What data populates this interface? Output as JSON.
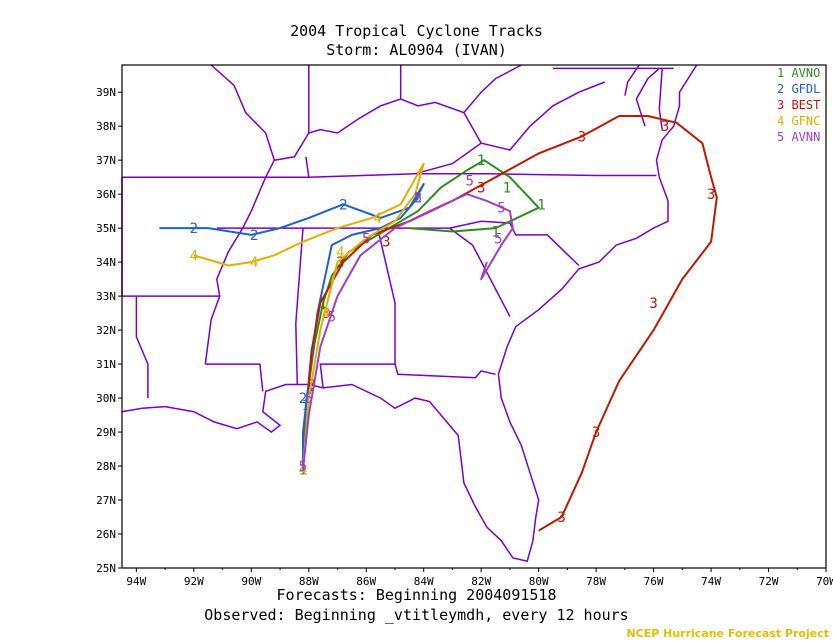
{
  "title": "2004 Tropical Cyclone Tracks",
  "subtitle": "Storm: AL0904 (IVAN)",
  "forecast_label": "Forecasts: Beginning 2004091518",
  "observed_label": "Observed: Beginning _vtitleymdh, every 12 hours",
  "credit": "NCEP Hurricane Forecast Project",
  "colors": {
    "border": "#7a00cc",
    "avno": "#2e8b1e",
    "gfdl": "#1f5fd0",
    "best": "#c01800",
    "gfnc": "#e0b000",
    "avnn": "#a040c0",
    "credit": "#e0c000"
  },
  "axes": {
    "lon_labels": [
      "94W",
      "92W",
      "90W",
      "88W",
      "86W",
      "84W",
      "82W",
      "80W",
      "78W",
      "76W",
      "74W",
      "72W",
      "70W"
    ],
    "lat_labels": [
      "39N",
      "38N",
      "37N",
      "36N",
      "35N",
      "34N",
      "33N",
      "32N",
      "31N",
      "30N",
      "29N",
      "28N",
      "27N",
      "26N",
      "25N"
    ],
    "lon_range": [
      -94.5,
      -70
    ],
    "lat_range": [
      25,
      39.8
    ]
  },
  "legend": [
    {
      "num": "1",
      "name": "AVNO",
      "color_key": "avno"
    },
    {
      "num": "2",
      "name": "GFDL",
      "color_key": "gfdl"
    },
    {
      "num": "3",
      "name": "BEST",
      "color_key": "best"
    },
    {
      "num": "4",
      "name": "GFNC",
      "color_key": "gfnc"
    },
    {
      "num": "5",
      "name": "AVNN",
      "color_key": "avnn"
    }
  ],
  "tracks": [
    {
      "num": "1",
      "color_key": "avno",
      "points": [
        [
          -88.2,
          27.9
        ],
        [
          -88.1,
          29.8
        ],
        [
          -87.8,
          31.6
        ],
        [
          -87.5,
          32.8
        ],
        [
          -87.2,
          33.6
        ],
        [
          -86.6,
          34.3
        ],
        [
          -85.8,
          34.7
        ],
        [
          -84.8,
          35.2
        ],
        [
          -84.2,
          35.5
        ],
        [
          -83.4,
          36.2
        ],
        [
          -82.5,
          36.7
        ],
        [
          -81.9,
          37.0
        ],
        [
          -81.0,
          36.5
        ],
        [
          -80.0,
          35.6
        ],
        [
          -81.5,
          35.0
        ],
        [
          -83.0,
          34.9
        ],
        [
          -84.5,
          35.0
        ]
      ],
      "labels": [
        [
          -88.2,
          27.9
        ],
        [
          -88.1,
          29.8
        ],
        [
          -87.5,
          32.8
        ],
        [
          -82.0,
          37.0
        ],
        [
          -81.1,
          36.2
        ],
        [
          -79.9,
          35.7
        ],
        [
          -81.5,
          34.9
        ]
      ]
    },
    {
      "num": "2",
      "color_key": "gfdl",
      "points": [
        [
          -88.2,
          27.9
        ],
        [
          -88.2,
          29.0
        ],
        [
          -88.0,
          30.5
        ],
        [
          -87.7,
          32.5
        ],
        [
          -87.2,
          34.5
        ],
        [
          -86.5,
          34.8
        ],
        [
          -85.5,
          35.0
        ],
        [
          -84.8,
          35.3
        ],
        [
          -84.3,
          35.8
        ],
        [
          -84.0,
          36.3
        ],
        [
          -84.5,
          35.6
        ],
        [
          -85.5,
          35.3
        ],
        [
          -86.8,
          35.7
        ],
        [
          -88.0,
          35.3
        ],
        [
          -89.0,
          35.0
        ],
        [
          -90.0,
          34.8
        ],
        [
          -91.5,
          35.0
        ],
        [
          -93.2,
          35.0
        ]
      ],
      "labels": [
        [
          -88.2,
          30.0
        ],
        [
          -84.2,
          35.9
        ],
        [
          -86.8,
          35.7
        ],
        [
          -89.9,
          34.8
        ],
        [
          -92.0,
          35.0
        ]
      ]
    },
    {
      "num": "3",
      "color_key": "best",
      "points": [
        [
          -80.0,
          26.1
        ],
        [
          -79.2,
          26.5
        ],
        [
          -78.5,
          27.8
        ],
        [
          -78.0,
          29.0
        ],
        [
          -77.2,
          30.5
        ],
        [
          -76.0,
          32.0
        ],
        [
          -75.0,
          33.5
        ],
        [
          -74.0,
          34.6
        ],
        [
          -73.8,
          35.9
        ],
        [
          -74.0,
          36.5
        ],
        [
          -74.3,
          37.5
        ],
        [
          -75.2,
          38.1
        ],
        [
          -76.2,
          38.3
        ],
        [
          -77.2,
          38.3
        ],
        [
          -78.5,
          37.7
        ],
        [
          -80.0,
          37.2
        ],
        [
          -81.5,
          36.5
        ],
        [
          -83.0,
          35.8
        ],
        [
          -84.5,
          35.2
        ],
        [
          -85.8,
          34.8
        ],
        [
          -86.8,
          34.0
        ],
        [
          -87.6,
          32.8
        ],
        [
          -87.9,
          31.4
        ],
        [
          -88.0,
          30.5
        ],
        [
          -87.9,
          30.2
        ]
      ],
      "labels": [
        [
          -79.2,
          26.5
        ],
        [
          -78.0,
          29.0
        ],
        [
          -76.0,
          32.8
        ],
        [
          -74.0,
          36.0
        ],
        [
          -75.6,
          38.0
        ],
        [
          -78.5,
          37.7
        ],
        [
          -82.0,
          36.2
        ],
        [
          -85.3,
          34.6
        ],
        [
          -86.9,
          34.0
        ],
        [
          -87.4,
          32.5
        ],
        [
          -87.9,
          30.4
        ]
      ]
    },
    {
      "num": "4",
      "color_key": "gfnc",
      "points": [
        [
          -88.2,
          27.9
        ],
        [
          -88.0,
          30.0
        ],
        [
          -87.6,
          32.0
        ],
        [
          -87.3,
          33.0
        ],
        [
          -87.0,
          34.0
        ],
        [
          -86.0,
          34.7
        ],
        [
          -85.0,
          35.2
        ],
        [
          -84.3,
          36.0
        ],
        [
          -84.0,
          36.9
        ],
        [
          -84.8,
          35.7
        ],
        [
          -85.8,
          35.3
        ],
        [
          -87.0,
          35.0
        ],
        [
          -88.2,
          34.6
        ],
        [
          -89.2,
          34.2
        ],
        [
          -90.0,
          34.0
        ],
        [
          -90.8,
          33.9
        ],
        [
          -92.0,
          34.2
        ]
      ],
      "labels": [
        [
          -88.2,
          27.9
        ],
        [
          -87.4,
          32.5
        ],
        [
          -86.9,
          34.3
        ],
        [
          -85.6,
          35.3
        ],
        [
          -89.9,
          34.0
        ],
        [
          -92.0,
          34.2
        ]
      ]
    },
    {
      "num": "5",
      "color_key": "avnn",
      "points": [
        [
          -88.2,
          27.9
        ],
        [
          -88.0,
          29.5
        ],
        [
          -87.6,
          31.5
        ],
        [
          -87.0,
          33.0
        ],
        [
          -86.2,
          34.2
        ],
        [
          -85.0,
          35.0
        ],
        [
          -83.8,
          35.5
        ],
        [
          -82.5,
          36.0
        ],
        [
          -81.8,
          35.8
        ],
        [
          -81.0,
          35.5
        ],
        [
          -80.9,
          35.0
        ],
        [
          -81.3,
          34.5
        ],
        [
          -82.0,
          33.5
        ],
        [
          -81.8,
          34.0
        ]
      ],
      "labels": [
        [
          -88.2,
          28.0
        ],
        [
          -88.0,
          30.0
        ],
        [
          -87.2,
          32.4
        ],
        [
          -86.0,
          34.7
        ],
        [
          -84.2,
          35.9
        ],
        [
          -82.4,
          36.4
        ],
        [
          -81.3,
          35.6
        ],
        [
          -81.4,
          34.7
        ]
      ]
    }
  ]
}
